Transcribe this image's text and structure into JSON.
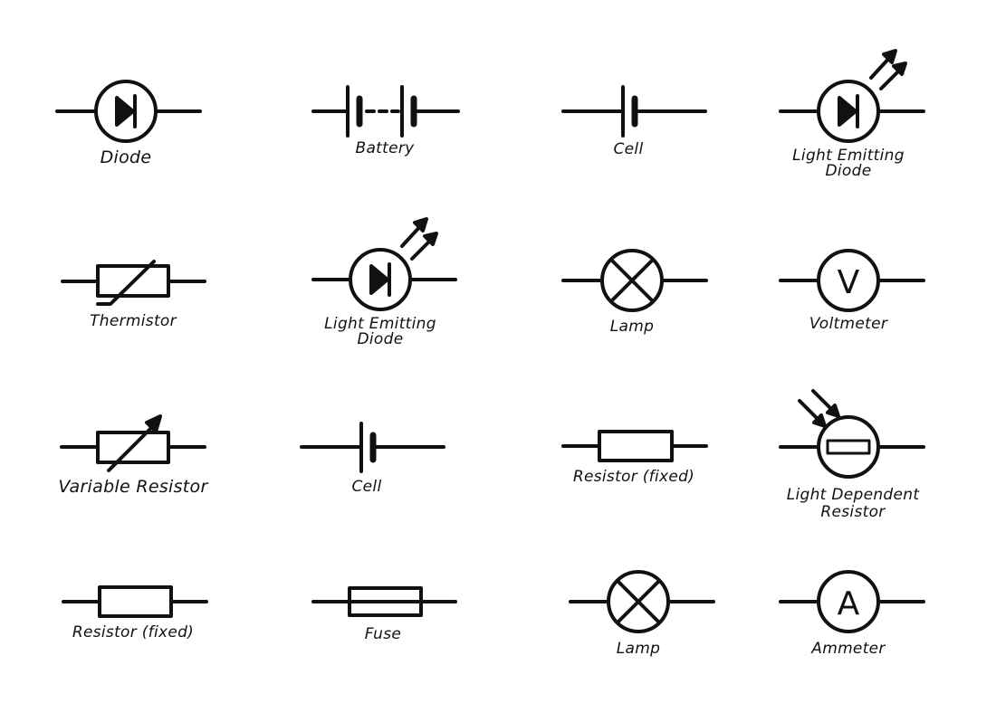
{
  "colors": {
    "ink": "#111111",
    "background": "#ffffff"
  },
  "symbols": [
    {
      "label": "Diode"
    },
    {
      "label": "Battery"
    },
    {
      "label": "Cell"
    },
    {
      "label": "Light Emitting",
      "label2": "Diode"
    },
    {
      "label": "Thermistor"
    },
    {
      "label": "Light Emitting",
      "label2": "Diode"
    },
    {
      "label": "Lamp"
    },
    {
      "label": "Voltmeter",
      "glyph": "V"
    },
    {
      "label": "Variable Resistor"
    },
    {
      "label": "Cell"
    },
    {
      "label": "Resistor (fixed)"
    },
    {
      "label": "Light Dependent",
      "label2": "Resistor"
    },
    {
      "label": "Resistor (fixed)"
    },
    {
      "label": "Fuse"
    },
    {
      "label": "Lamp"
    },
    {
      "label": "Ammeter",
      "glyph": "A"
    }
  ]
}
